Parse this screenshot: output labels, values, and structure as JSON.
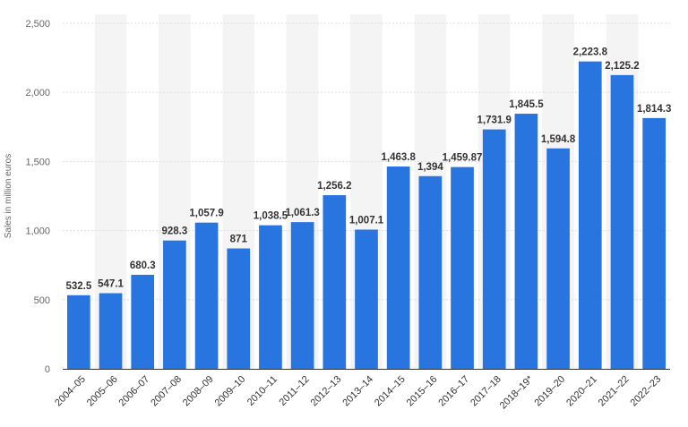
{
  "chart_data": {
    "type": "bar",
    "categories": [
      "2004–05",
      "2005–06",
      "2006–07",
      "2007–08",
      "2008–09",
      "2009–10",
      "2010–11",
      "2011–12",
      "2012–13",
      "2013–14",
      "2014–15",
      "2015–16",
      "2016–17",
      "2017–18",
      "2018–19*",
      "2019–20",
      "2020–21",
      "2021–22",
      "2022–23"
    ],
    "values": [
      532.5,
      547.1,
      680.3,
      928.3,
      1057.9,
      871,
      1038.5,
      1061.3,
      1256.2,
      1007.1,
      1463.8,
      1394,
      1459.87,
      1731.9,
      1845.5,
      1594.8,
      2223.8,
      2125.2,
      1814.3
    ],
    "value_labels": [
      "532.5",
      "547.1",
      "680.3",
      "928.3",
      "1,057.9",
      "871",
      "1,038.5",
      "1,061.3",
      "1,256.2",
      "1,007.1",
      "1,463.8",
      "1,394",
      "1,459.87",
      "1,731.9",
      "1,845.5",
      "1,594.8",
      "2,223.8",
      "2,125.2",
      "1,814.3"
    ],
    "yticks": [
      0,
      500,
      1000,
      1500,
      2000,
      2500
    ],
    "ytick_labels": [
      "0",
      "500",
      "1,000",
      "1,500",
      "2,000",
      "2,500"
    ],
    "ylim": [
      0,
      2500
    ],
    "ylabel": "Sales in million euros",
    "xlabel": "",
    "title": "",
    "grid": true,
    "bar_color": "#2875e0",
    "band_color": "#f4f4f4"
  }
}
